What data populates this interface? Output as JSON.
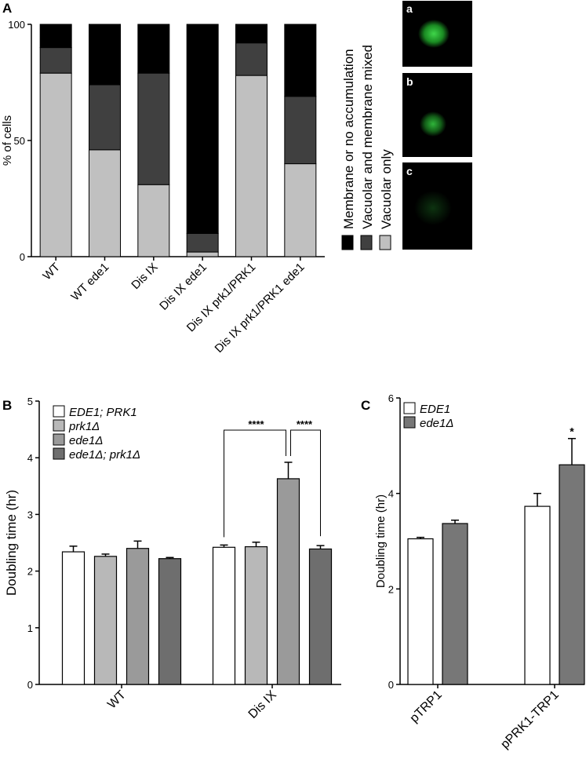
{
  "panels": [
    "A",
    "B",
    "C"
  ],
  "images": [
    "a",
    "b",
    "c"
  ],
  "chart_data": [
    {
      "type": "stacked_bar",
      "categories": [
        "WT",
        "WT ede1",
        "Dis IX",
        "Dis IX ede1",
        "Dis IX prk1/PRK1",
        "Dis IX prk1/PRK1 ede1"
      ],
      "ylabel": "% of cells",
      "ylim": [
        0,
        100
      ],
      "yticks": [
        0,
        50,
        100
      ],
      "series": [
        {
          "name": "Vacuolar only",
          "color": "#c0c0c0",
          "values": [
            79,
            46,
            31,
            2,
            78,
            40
          ]
        },
        {
          "name": "Vacuolar and membrane mixed",
          "color": "#404040",
          "values": [
            11,
            28,
            48,
            8,
            14,
            29
          ]
        },
        {
          "name": "Membrane or no accumulation",
          "color": "#000000",
          "values": [
            10,
            26,
            21,
            90,
            8,
            31
          ]
        }
      ]
    },
    {
      "type": "grouped_bar",
      "categories": [
        "WT",
        "Dis IX"
      ],
      "ylabel": "Doubling time (hr)",
      "ylim": [
        0,
        5
      ],
      "yticks": [
        0,
        1,
        2,
        3,
        4,
        5
      ],
      "series": [
        {
          "name": "EDE1; PRK1",
          "color": "#ffffff",
          "values": [
            2.34,
            2.42
          ],
          "errors": [
            0.1,
            0.04
          ]
        },
        {
          "name": "prk1Δ",
          "color": "#b8b8b8",
          "values": [
            2.26,
            2.43
          ],
          "errors": [
            0.04,
            0.08
          ]
        },
        {
          "name": "ede1Δ",
          "color": "#9a9a9a",
          "values": [
            2.4,
            3.63
          ],
          "errors": [
            0.13,
            0.29
          ]
        },
        {
          "name": "ede1Δ; prk1Δ",
          "color": "#6e6e6e",
          "values": [
            2.22,
            2.39
          ],
          "errors": [
            0.02,
            0.06
          ]
        }
      ],
      "annotations": [
        "****",
        "****"
      ]
    },
    {
      "type": "grouped_bar",
      "categories": [
        "pTRP1",
        "pPRK1-TRP1"
      ],
      "ylabel": "Doubling time (hr)",
      "ylim": [
        0,
        6
      ],
      "yticks": [
        0,
        2,
        4,
        6
      ],
      "series": [
        {
          "name": "EDE1",
          "color": "#ffffff",
          "values": [
            3.05,
            3.73
          ],
          "errors": [
            0.03,
            0.27
          ]
        },
        {
          "name": "ede1Δ",
          "color": "#777777",
          "values": [
            3.37,
            4.6
          ],
          "errors": [
            0.07,
            0.55
          ]
        }
      ],
      "annotations": [
        "*"
      ]
    }
  ]
}
